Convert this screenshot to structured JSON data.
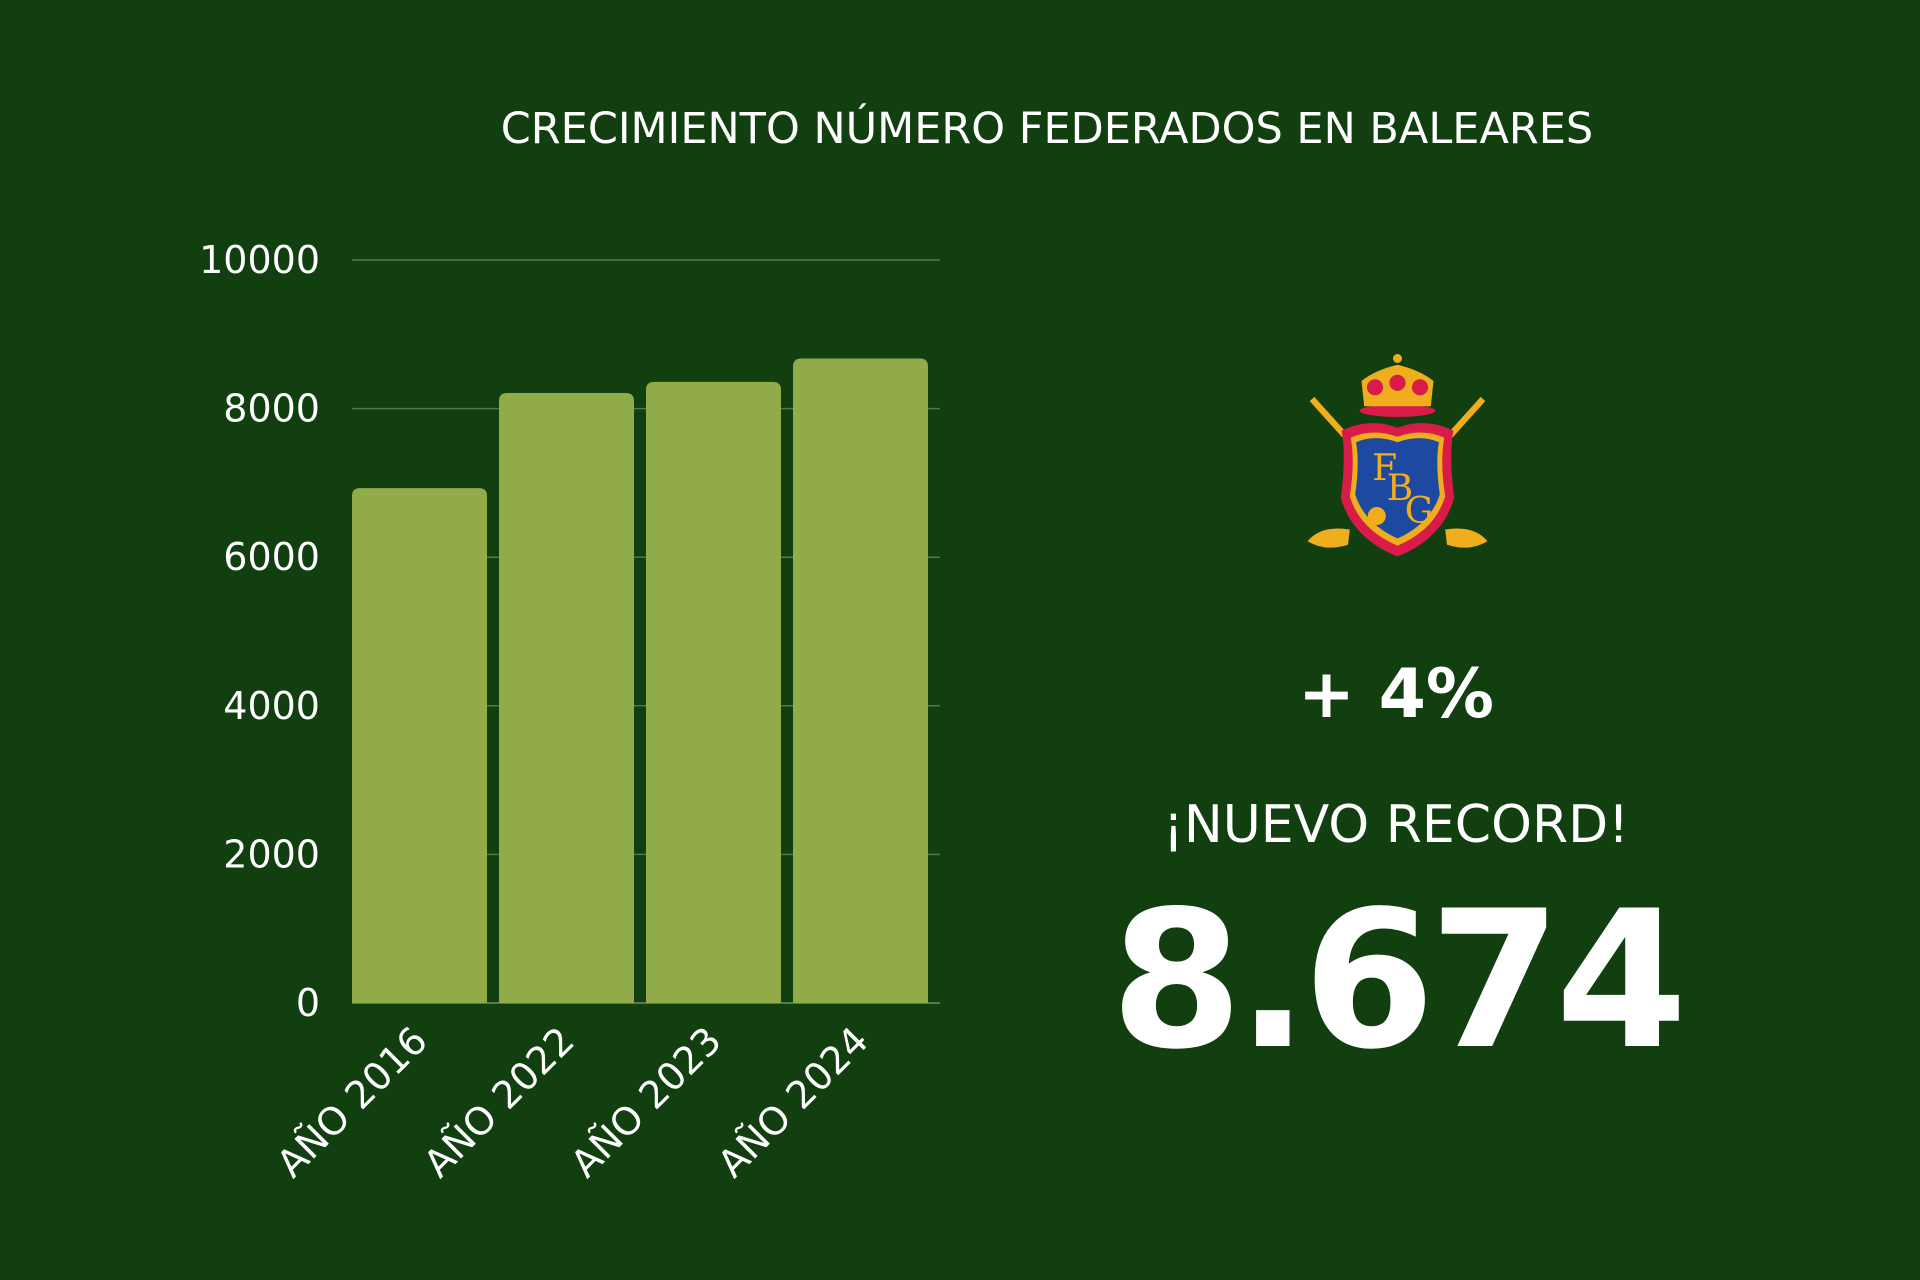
{
  "chart_data": {
    "type": "bar",
    "title": "CRECIMIENTO NÚMERO FEDERADOS EN BALEARES",
    "categories": [
      "AÑO 2016",
      "AÑO 2022",
      "AÑO 2023",
      "AÑO 2024"
    ],
    "values": [
      6930,
      8210,
      8360,
      8674
    ],
    "ylim": [
      0,
      10000
    ],
    "yticks": [
      "0",
      "2000",
      "4000",
      "6000",
      "8000",
      "10000"
    ],
    "xlabel": "",
    "ylabel": "",
    "grid": true,
    "colors": {
      "bar": "#92ab49",
      "background": "#113f10",
      "grid": "#4f7a45"
    }
  },
  "logo": {
    "text": "FBG",
    "name": "federacion-balear-golf-crest"
  },
  "stats": {
    "growth": "+ 4%",
    "record_label": "¡NUEVO RECORD!",
    "record_value": "8.674"
  }
}
